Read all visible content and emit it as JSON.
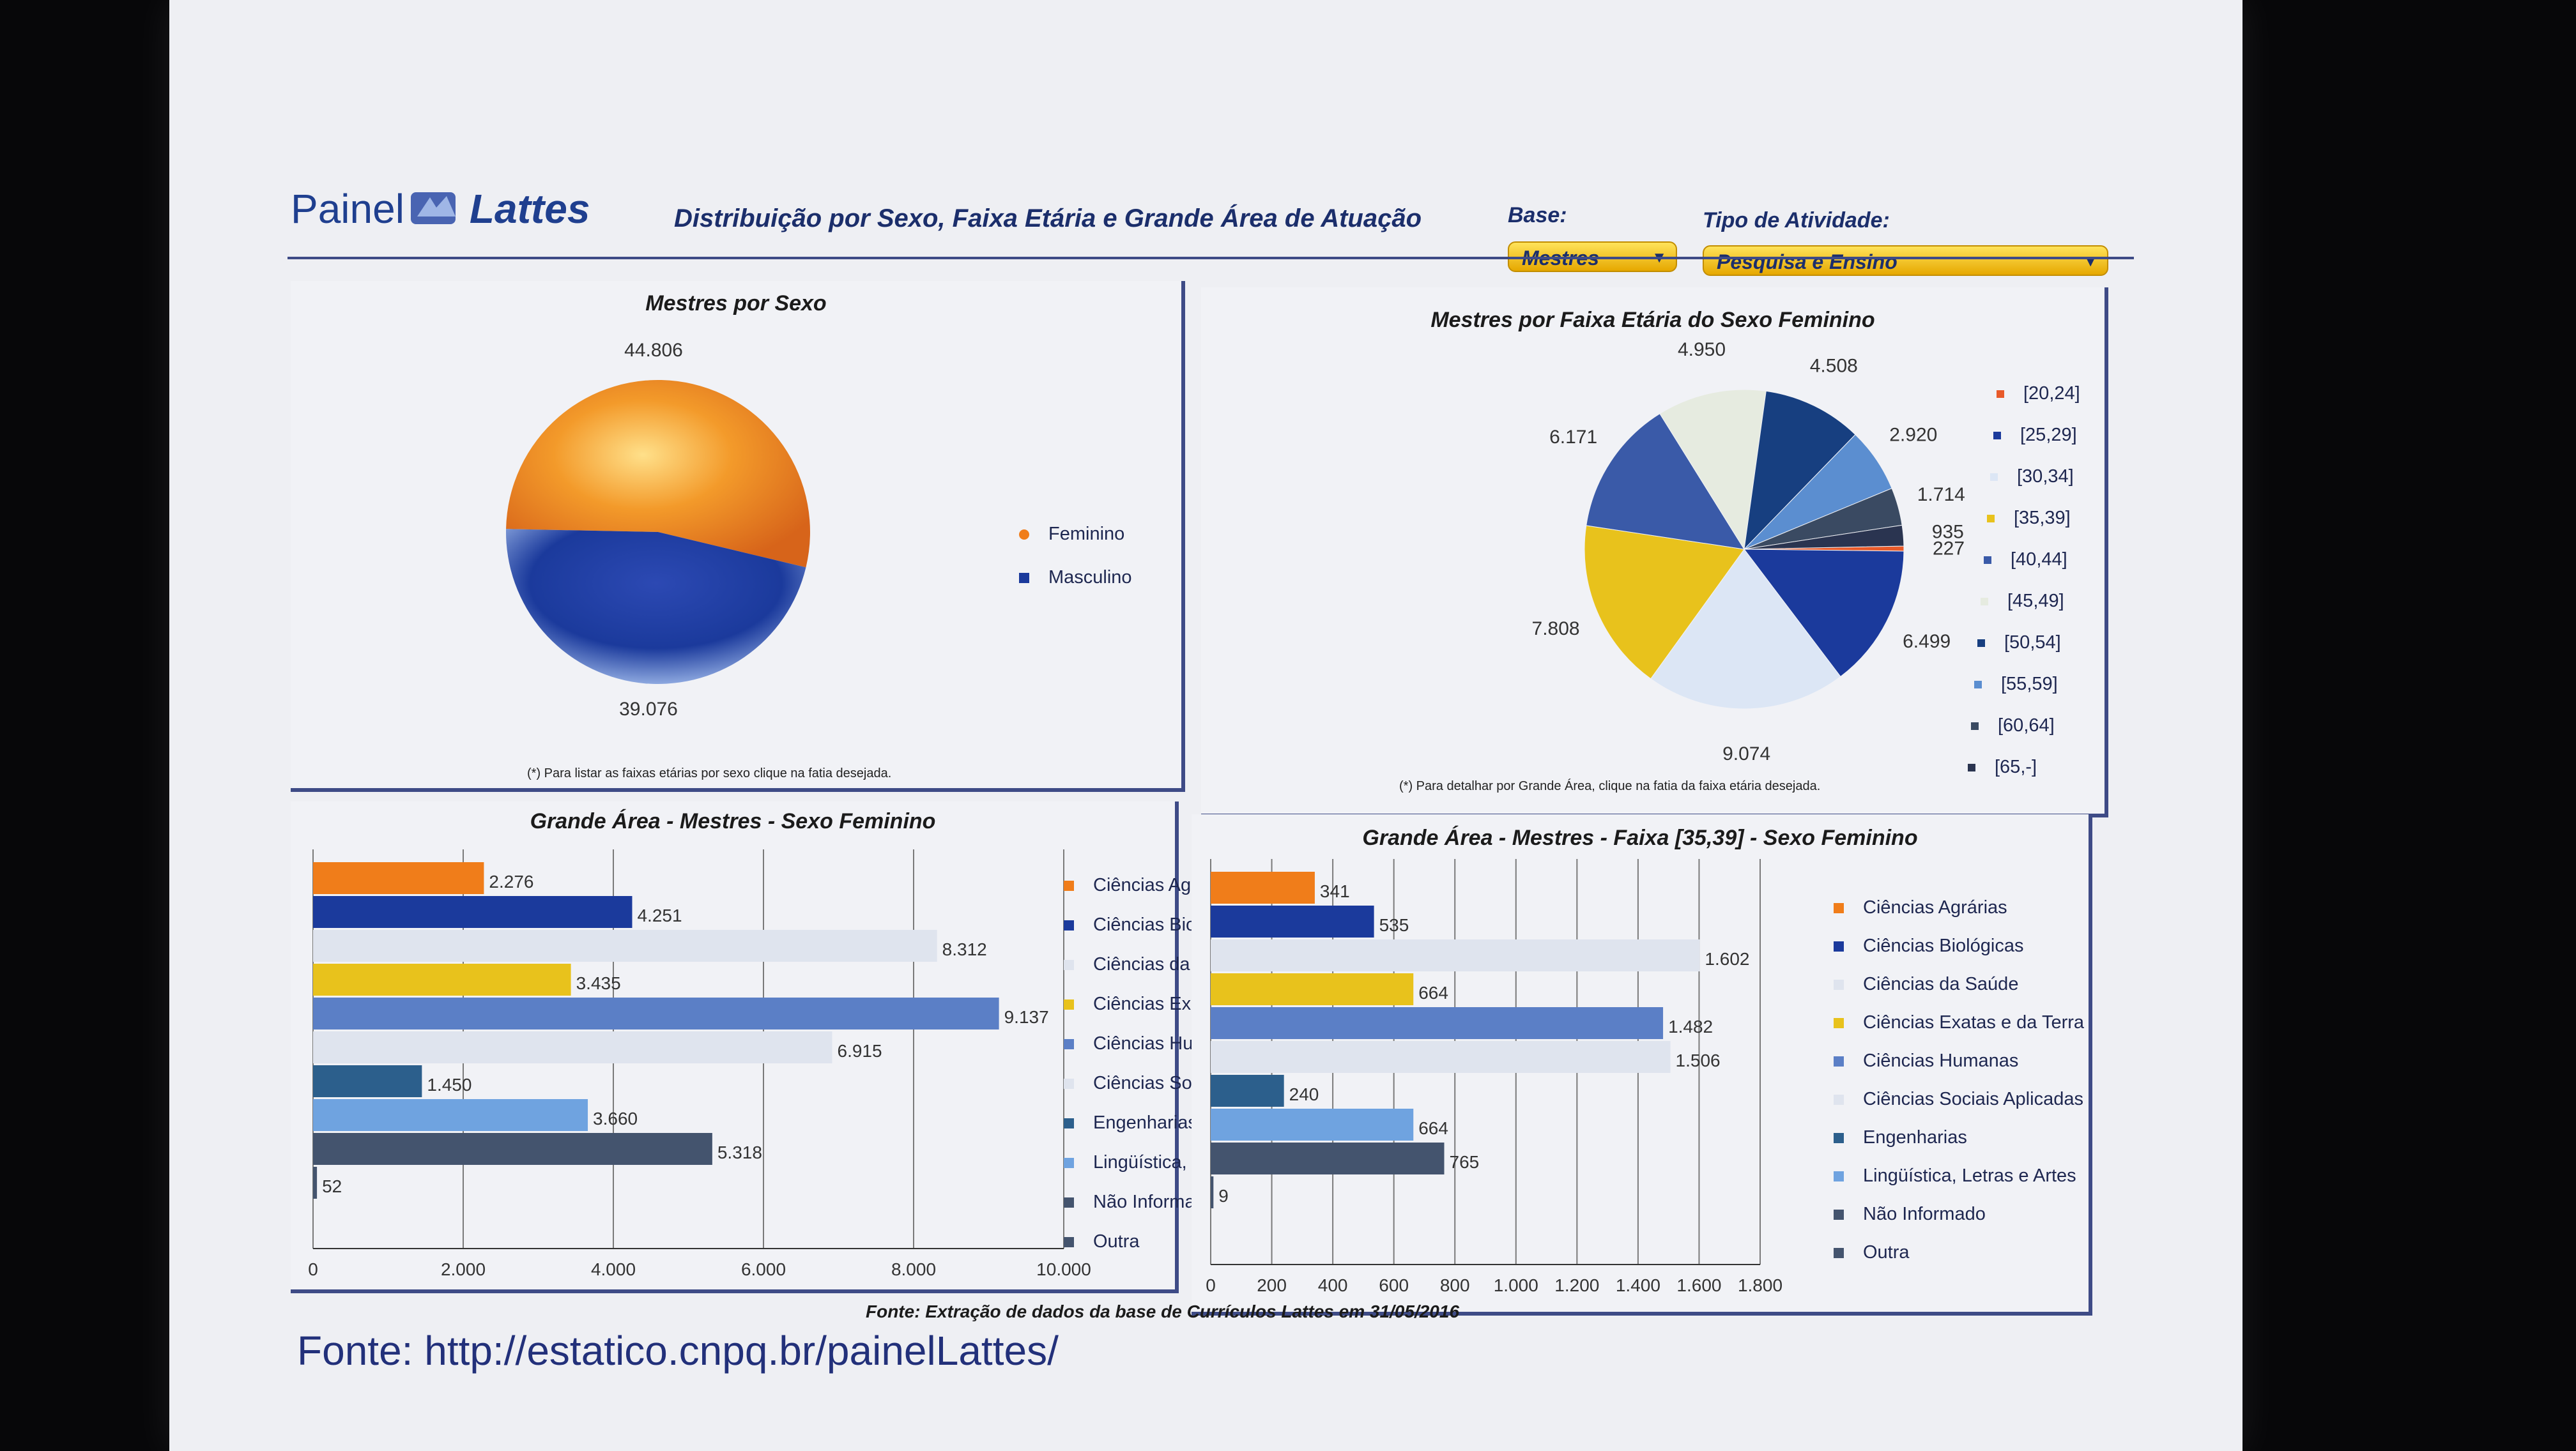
{
  "header": {
    "logo_painel": "Painel",
    "logo_lattes": "Lattes",
    "title": "Distribuição por Sexo, Faixa Etária e Grande Área de Atuação",
    "base_label": "Base:",
    "base_value": "Mestres",
    "tipo_label": "Tipo de Atividade:",
    "tipo_value": "Pesquisa e Ensino"
  },
  "colors": {
    "feminino": "#f07d1a",
    "masculino": "#1b3a9c",
    "yellow": "#e8c21c",
    "steel": "#5b7fc6",
    "light": "#dfe4ee",
    "teal": "#2c5f8c",
    "sky": "#6fa3e0",
    "slate": "#44546e",
    "panel_border": "#3e4b86"
  },
  "panel_sexo": {
    "title": "Mestres por Sexo",
    "note": "(*) Para listar as faixas etárias por sexo clique na fatia desejada.",
    "legend": [
      "Feminino",
      "Masculino"
    ]
  },
  "panel_faixa": {
    "title": "Mestres por Faixa Etária do Sexo Feminino",
    "note": "(*) Para detalhar por Grande Área, clique na fatia da faixa etária desejada.",
    "legend": [
      "[20,24]",
      "[25,29]",
      "[30,34]",
      "[35,39]",
      "[40,44]",
      "[45,49]",
      "[50,54]",
      "[55,59]",
      "[60,64]",
      "[65,-]"
    ]
  },
  "panel_area": {
    "title": "Grande Área - Mestres - Sexo Feminino"
  },
  "panel_area_faixa": {
    "title": "Grande Área - Mestres - Faixa [35,39] - Sexo Feminino"
  },
  "area_legend": [
    "Ciências Agrárias",
    "Ciências Biológicas",
    "Ciências da Saúde",
    "Ciências Exatas e da Terra",
    "Ciências Humanas",
    "Ciências Sociais Aplicadas",
    "Engenharias",
    "Lingüística, Letras e Artes",
    "Não Informado",
    "Outra"
  ],
  "footer": {
    "fonte_small": "Fonte: Extração de dados da base de Currículos Lattes em 31/05/2016",
    "fonte_big": "Fonte: http://estatico.cnpq.br/painelLattes/"
  },
  "chart_data": [
    {
      "type": "pie",
      "title": "Mestres por Sexo",
      "categories": [
        "Feminino",
        "Masculino"
      ],
      "values": [
        44806,
        39076
      ],
      "value_labels": [
        "44.806",
        "39.076"
      ],
      "legend": "right"
    },
    {
      "type": "pie",
      "title": "Mestres por Faixa Etária do Sexo Feminino",
      "categories": [
        "[20,24]",
        "[25,29]",
        "[30,34]",
        "[35,39]",
        "[40,44]",
        "[45,49]",
        "[50,54]",
        "[55,59]",
        "[60,64]",
        "[65,-]"
      ],
      "values": [
        227,
        6499,
        9074,
        7808,
        6171,
        4950,
        4508,
        2920,
        1714,
        935
      ],
      "value_labels": [
        "227",
        "6.499",
        "9.074",
        "7.808",
        "6.171",
        "4.950",
        "4.508",
        "2.920",
        "1.714",
        "935"
      ],
      "legend": "right"
    },
    {
      "type": "bar",
      "orientation": "horizontal",
      "title": "Grande Área - Mestres - Sexo Feminino",
      "categories": [
        "Ciências Agrárias",
        "Ciências Biológicas",
        "Ciências da Saúde",
        "Ciências Exatas e da Terra",
        "Ciências Humanas",
        "Ciências Sociais Aplicadas",
        "Engenharias",
        "Lingüística, Letras e Artes",
        "Não Informado",
        "Outra"
      ],
      "values": [
        2276,
        4251,
        8312,
        3435,
        9137,
        6915,
        1450,
        3660,
        5318,
        52
      ],
      "value_labels": [
        "2.276",
        "4.251",
        "8.312",
        "3.435",
        "9.137",
        "6.915",
        "1.450",
        "3.660",
        "5.318",
        "52"
      ],
      "xlim": [
        0,
        10000
      ],
      "x_ticks": [
        "0",
        "2.000",
        "4.000",
        "6.000",
        "8.000",
        "10.000"
      ],
      "grid": true,
      "legend": "right"
    },
    {
      "type": "bar",
      "orientation": "horizontal",
      "title": "Grande Área - Mestres - Faixa [35,39] - Sexo Feminino",
      "categories": [
        "Ciências Agrárias",
        "Ciências Biológicas",
        "Ciências da Saúde",
        "Ciências Exatas e da Terra",
        "Ciências Humanas",
        "Ciências Sociais Aplicadas",
        "Engenharias",
        "Lingüística, Letras e Artes",
        "Não Informado",
        "Outra"
      ],
      "values": [
        341,
        535,
        1602,
        664,
        1482,
        1506,
        240,
        664,
        765,
        9
      ],
      "value_labels": [
        "341",
        "535",
        "1.602",
        "664",
        "1.482",
        "1.506",
        "240",
        "664",
        "765",
        "9"
      ],
      "xlim": [
        0,
        1800
      ],
      "x_ticks": [
        "0",
        "200",
        "400",
        "600",
        "800",
        "1.000",
        "1.200",
        "1.400",
        "1.600",
        "1.800"
      ],
      "grid": true,
      "legend": "right"
    }
  ]
}
